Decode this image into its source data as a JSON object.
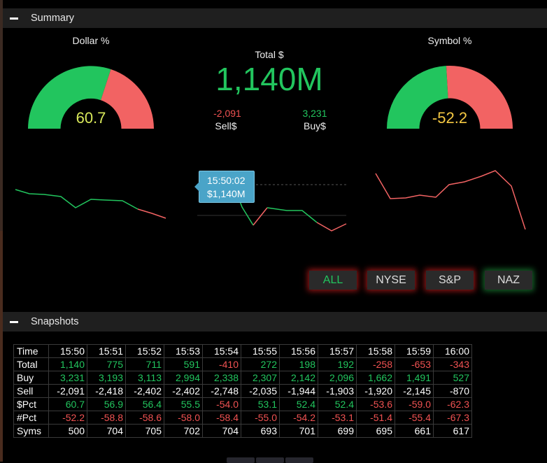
{
  "colors": {
    "positive": "#22c55e",
    "negative": "#f05252",
    "neutral": "#ffffff",
    "gauge_green": "#22c55e",
    "gauge_red": "#f26363",
    "accent_yellow": "#f5c842"
  },
  "summary": {
    "header_label": "Summary",
    "dollar_gauge": {
      "title": "Dollar %",
      "value": "60.7",
      "pct": 60.7
    },
    "symbol_gauge": {
      "title": "Symbol %",
      "value": "-52.2",
      "pct": -52.2
    },
    "total_label": "Total $",
    "total_value": "1,140M",
    "sell_value": "-2,091",
    "sell_label": "Sell$",
    "buy_value": "3,231",
    "buy_label": "Buy$",
    "tooltip": {
      "time": "15:50:02",
      "value": "$1,140M"
    }
  },
  "filters": [
    {
      "label": "ALL",
      "active": true
    },
    {
      "label": "NYSE",
      "active": false
    },
    {
      "label": "S&P",
      "active": false
    },
    {
      "label": "NAZ",
      "active": false
    }
  ],
  "snapshots": {
    "header_label": "Snapshots",
    "rows": [
      {
        "label": "Time",
        "cells": [
          "15:50",
          "15:51",
          "15:52",
          "15:53",
          "15:54",
          "15:55",
          "15:56",
          "15:57",
          "15:58",
          "15:59",
          "16:00"
        ]
      },
      {
        "label": "Total",
        "cells": [
          "1,140",
          "775",
          "711",
          "591",
          "-410",
          "272",
          "198",
          "192",
          "-258",
          "-653",
          "-343"
        ]
      },
      {
        "label": "Buy",
        "cells": [
          "3,231",
          "3,193",
          "3,113",
          "2,994",
          "2,338",
          "2,307",
          "2,142",
          "2,096",
          "1,662",
          "1,491",
          "527"
        ]
      },
      {
        "label": "Sell",
        "cells": [
          "-2,091",
          "-2,418",
          "-2,402",
          "-2,402",
          "-2,748",
          "-2,035",
          "-1,944",
          "-1,903",
          "-1,920",
          "-2,145",
          "-870"
        ]
      },
      {
        "label": "$Pct",
        "cells": [
          "60.7",
          "56.9",
          "56.4",
          "55.5",
          "-54.0",
          "53.1",
          "52.4",
          "52.4",
          "-53.6",
          "-59.0",
          "-62.3"
        ]
      },
      {
        "label": "#Pct",
        "cells": [
          "-52.2",
          "-58.8",
          "-58.6",
          "-58.0",
          "-58.4",
          "-55.0",
          "-54.2",
          "-53.1",
          "-51.4",
          "-55.4",
          "-67.3"
        ]
      },
      {
        "label": "Syms",
        "cells": [
          "500",
          "704",
          "705",
          "702",
          "704",
          "693",
          "701",
          "699",
          "695",
          "661",
          "617"
        ]
      }
    ]
  }
}
